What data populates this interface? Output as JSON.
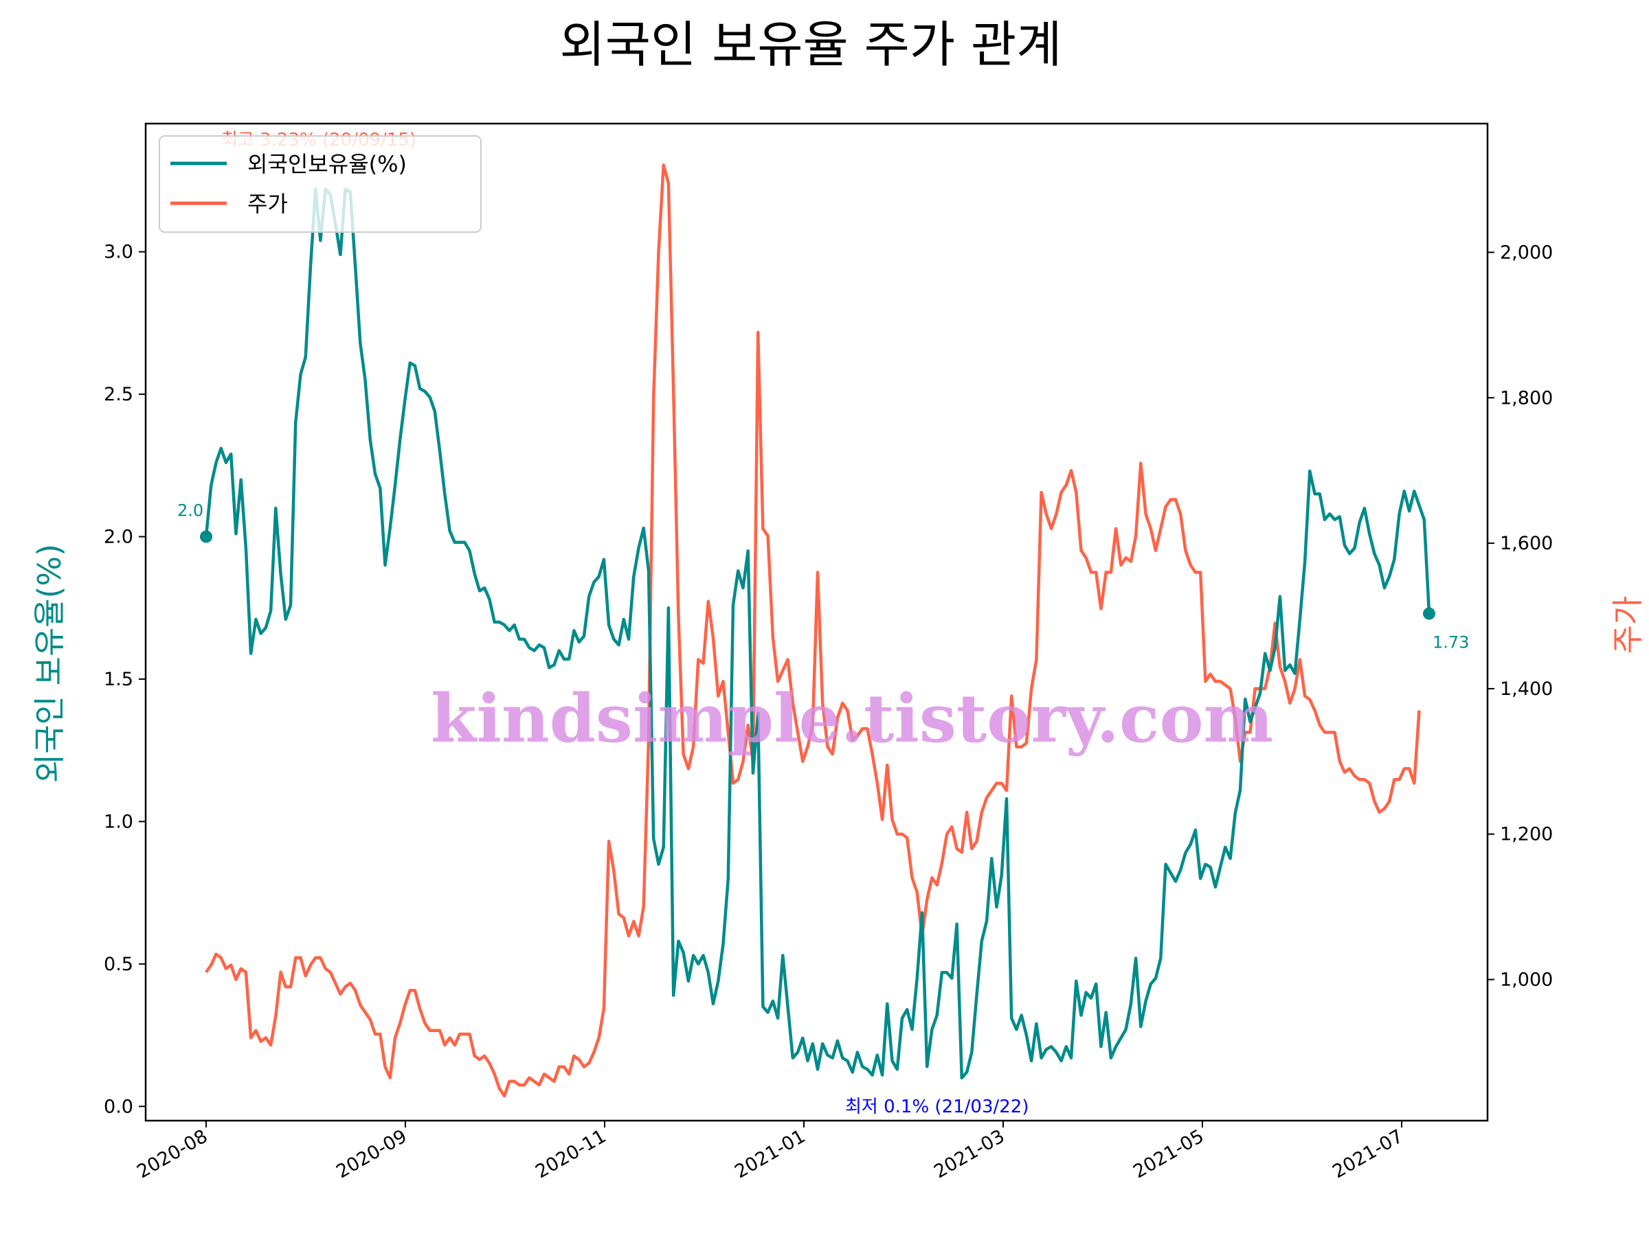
{
  "title": "외국인 보유율 주가 관계",
  "watermark": "kindsimple.tistory.com",
  "colors": {
    "foreign": "#008B8B",
    "price": "#FF6347",
    "min_annot": "#0000FF",
    "watermark": "#d88be3"
  },
  "chart_data": {
    "type": "line",
    "title": "외국인 보유율 주가 관계",
    "xlabel": "",
    "x_tick_labels": [
      "2020-08",
      "2020-09",
      "2020-11",
      "2021-01",
      "2021-03",
      "2021-05",
      "2021-07"
    ],
    "y_left": {
      "label": "외국인 보유율(%)",
      "range": [
        -0.05,
        3.45
      ],
      "ticks": [
        "0.0",
        "0.5",
        "1.0",
        "1.5",
        "2.0",
        "2.5",
        "3.0"
      ]
    },
    "y_right": {
      "label": "주가",
      "range": [
        806,
        2177
      ],
      "ticks": [
        "1,000",
        "1,200",
        "1,400",
        "1,600",
        "1,800",
        "2,000"
      ]
    },
    "legend_position": "upper left",
    "series": [
      {
        "name": "외국인보유율(%)",
        "axis": "left",
        "values": [
          2.0,
          2.18,
          2.26,
          2.31,
          2.26,
          2.29,
          2.01,
          2.2,
          1.96,
          1.59,
          1.71,
          1.66,
          1.68,
          1.74,
          2.1,
          1.87,
          1.71,
          1.76,
          2.4,
          2.57,
          2.63,
          2.95,
          3.22,
          3.04,
          3.22,
          3.2,
          3.1,
          2.99,
          3.22,
          3.21,
          2.95,
          2.68,
          2.55,
          2.34,
          2.22,
          2.17,
          1.9,
          2.03,
          2.18,
          2.34,
          2.48,
          2.61,
          2.6,
          2.52,
          2.51,
          2.49,
          2.44,
          2.3,
          2.15,
          2.02,
          1.98,
          1.98,
          1.98,
          1.95,
          1.87,
          1.81,
          1.82,
          1.78,
          1.7,
          1.7,
          1.69,
          1.67,
          1.69,
          1.64,
          1.64,
          1.61,
          1.6,
          1.62,
          1.61,
          1.54,
          1.55,
          1.6,
          1.57,
          1.57,
          1.67,
          1.63,
          1.65,
          1.79,
          1.84,
          1.86,
          1.92,
          1.69,
          1.64,
          1.62,
          1.71,
          1.64,
          1.86,
          1.96,
          2.03,
          1.88,
          0.94,
          0.85,
          0.91,
          1.75,
          0.39,
          0.58,
          0.54,
          0.44,
          0.53,
          0.5,
          0.53,
          0.47,
          0.36,
          0.44,
          0.57,
          0.8,
          1.76,
          1.88,
          1.82,
          1.95,
          1.17,
          1.38,
          0.35,
          0.33,
          0.37,
          0.31,
          0.53,
          0.35,
          0.17,
          0.19,
          0.24,
          0.16,
          0.22,
          0.13,
          0.22,
          0.18,
          0.17,
          0.23,
          0.17,
          0.16,
          0.12,
          0.19,
          0.14,
          0.13,
          0.11,
          0.18,
          0.11,
          0.36,
          0.16,
          0.13,
          0.31,
          0.34,
          0.27,
          0.45,
          0.68,
          0.14,
          0.27,
          0.32,
          0.47,
          0.47,
          0.45,
          0.64,
          0.1,
          0.12,
          0.19,
          0.39,
          0.58,
          0.65,
          0.87,
          0.7,
          0.81,
          1.08,
          0.31,
          0.27,
          0.32,
          0.25,
          0.16,
          0.29,
          0.17,
          0.2,
          0.21,
          0.19,
          0.16,
          0.21,
          0.17,
          0.44,
          0.32,
          0.4,
          0.38,
          0.43,
          0.21,
          0.33,
          0.17,
          0.21,
          0.24,
          0.27,
          0.36,
          0.52,
          0.28,
          0.37,
          0.43,
          0.45,
          0.52,
          0.85,
          0.82,
          0.79,
          0.83,
          0.89,
          0.92,
          0.97,
          0.8,
          0.85,
          0.84,
          0.77,
          0.84,
          0.91,
          0.87,
          1.03,
          1.11,
          1.43,
          1.35,
          1.4,
          1.45,
          1.59,
          1.53,
          1.61,
          1.79,
          1.53,
          1.55,
          1.52,
          1.71,
          1.91,
          2.23,
          2.15,
          2.15,
          2.06,
          2.08,
          2.06,
          2.07,
          1.97,
          1.94,
          1.96,
          2.05,
          2.1,
          2.01,
          1.94,
          1.9,
          1.82,
          1.86,
          1.92,
          2.08,
          2.16,
          2.09,
          2.16,
          2.11,
          2.06,
          1.73
        ]
      },
      {
        "name": "주가",
        "axis": "right",
        "values": [
          1010,
          1020,
          1035,
          1030,
          1015,
          1020,
          1000,
          1015,
          1010,
          920,
          930,
          915,
          920,
          910,
          950,
          1010,
          990,
          990,
          1030,
          1030,
          1005,
          1020,
          1030,
          1030,
          1015,
          1010,
          995,
          980,
          990,
          995,
          985,
          965,
          955,
          945,
          925,
          925,
          880,
          865,
          920,
          940,
          965,
          985,
          985,
          960,
          940,
          930,
          930,
          930,
          910,
          920,
          910,
          925,
          925,
          925,
          895,
          890,
          895,
          885,
          870,
          850,
          840,
          860,
          860,
          855,
          855,
          865,
          860,
          855,
          870,
          865,
          860,
          880,
          880,
          870,
          895,
          890,
          880,
          885,
          900,
          920,
          960,
          1190,
          1150,
          1090,
          1085,
          1060,
          1080,
          1060,
          1100,
          1330,
          1800,
          2000,
          2120,
          2095,
          1810,
          1500,
          1310,
          1290,
          1320,
          1440,
          1435,
          1520,
          1470,
          1390,
          1410,
          1340,
          1270,
          1275,
          1300,
          1350,
          1300,
          1890,
          1620,
          1610,
          1470,
          1410,
          1425,
          1440,
          1380,
          1340,
          1300,
          1320,
          1350,
          1560,
          1380,
          1320,
          1310,
          1360,
          1380,
          1370,
          1330,
          1335,
          1345,
          1345,
          1310,
          1270,
          1220,
          1295,
          1220,
          1200,
          1200,
          1195,
          1140,
          1120,
          1060,
          1110,
          1140,
          1130,
          1160,
          1200,
          1210,
          1180,
          1175,
          1230,
          1180,
          1190,
          1230,
          1250,
          1260,
          1270,
          1270,
          1260,
          1390,
          1320,
          1320,
          1325,
          1400,
          1440,
          1670,
          1640,
          1620,
          1640,
          1670,
          1680,
          1700,
          1670,
          1590,
          1580,
          1560,
          1560,
          1510,
          1560,
          1560,
          1620,
          1570,
          1580,
          1575,
          1610,
          1710,
          1640,
          1620,
          1590,
          1620,
          1650,
          1660,
          1660,
          1640,
          1590,
          1570,
          1560,
          1560,
          1410,
          1420,
          1410,
          1410,
          1405,
          1400,
          1360,
          1300,
          1340,
          1340,
          1400,
          1400,
          1400,
          1430,
          1490,
          1430,
          1410,
          1380,
          1400,
          1440,
          1390,
          1385,
          1370,
          1350,
          1340,
          1340,
          1340,
          1300,
          1285,
          1290,
          1280,
          1275,
          1275,
          1270,
          1245,
          1230,
          1235,
          1245,
          1275,
          1275,
          1290,
          1290,
          1270,
          1370
        ]
      }
    ],
    "annotations": [
      {
        "text": "최고 3.23% (20/09/15)",
        "series": "외국인보유율(%)",
        "value": 3.23,
        "color": "#FF6347"
      },
      {
        "text": "최저 0.1% (21/03/22)",
        "series": "외국인보유율(%)",
        "value": 0.1,
        "color": "#0000FF"
      },
      {
        "text": "2.0",
        "series": "외국인보유율(%)",
        "value": 2.0,
        "color": "#008B8B"
      },
      {
        "text": "1.73",
        "series": "외국인보유율(%)",
        "value": 1.73,
        "color": "#008B8B"
      }
    ]
  }
}
